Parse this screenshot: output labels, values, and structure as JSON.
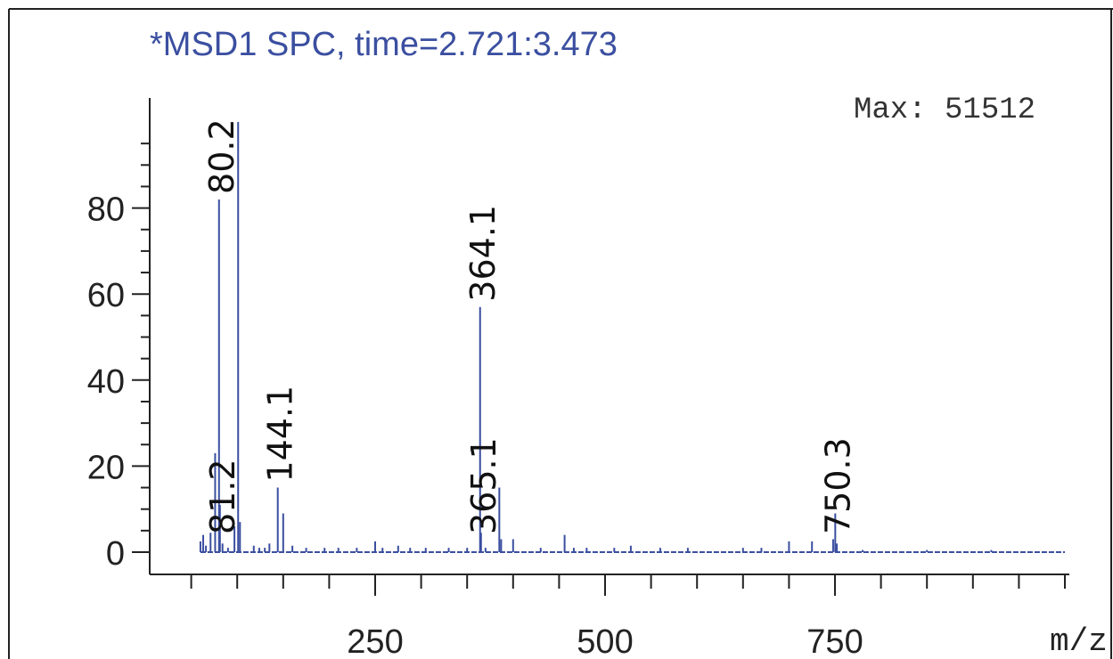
{
  "chart_data": {
    "type": "bar",
    "title": "*MSD1 SPC, time=2.721:3.473",
    "max_label": "Max: 51512",
    "xlabel": "m/z",
    "ylabel": "",
    "xlim": [
      50,
      1000
    ],
    "ylim": [
      0,
      100
    ],
    "x_ticks": {
      "major": [
        250,
        500,
        750
      ],
      "minor_step": 50,
      "labels": [
        "250",
        "500",
        "750"
      ]
    },
    "y_ticks": {
      "major": [
        0,
        20,
        40,
        60,
        80
      ],
      "minor_step": 5,
      "labels": [
        "0",
        "20",
        "40",
        "60",
        "80"
      ]
    },
    "peaks": [
      {
        "mz": 60,
        "intensity": 2.5
      },
      {
        "mz": 63,
        "intensity": 4
      },
      {
        "mz": 66,
        "intensity": 1.5
      },
      {
        "mz": 71,
        "intensity": 4.5
      },
      {
        "mz": 76,
        "intensity": 23
      },
      {
        "mz": 80.2,
        "intensity": 82,
        "label": "80.2"
      },
      {
        "mz": 81.2,
        "intensity": 11,
        "label": "81.2"
      },
      {
        "mz": 84,
        "intensity": 2
      },
      {
        "mz": 90,
        "intensity": 1
      },
      {
        "mz": 97,
        "intensity": 6
      },
      {
        "mz": 101,
        "intensity": 100
      },
      {
        "mz": 103,
        "intensity": 7
      },
      {
        "mz": 118,
        "intensity": 1.5
      },
      {
        "mz": 124,
        "intensity": 1
      },
      {
        "mz": 130,
        "intensity": 1
      },
      {
        "mz": 135,
        "intensity": 2
      },
      {
        "mz": 144.1,
        "intensity": 15,
        "label": "144.1"
      },
      {
        "mz": 150,
        "intensity": 9
      },
      {
        "mz": 160,
        "intensity": 1.5
      },
      {
        "mz": 175,
        "intensity": 1
      },
      {
        "mz": 195,
        "intensity": 1
      },
      {
        "mz": 210,
        "intensity": 1
      },
      {
        "mz": 230,
        "intensity": 1
      },
      {
        "mz": 250,
        "intensity": 2.5
      },
      {
        "mz": 258,
        "intensity": 1
      },
      {
        "mz": 275,
        "intensity": 1.5
      },
      {
        "mz": 288,
        "intensity": 1
      },
      {
        "mz": 305,
        "intensity": 1
      },
      {
        "mz": 330,
        "intensity": 1
      },
      {
        "mz": 350,
        "intensity": 1
      },
      {
        "mz": 364.1,
        "intensity": 57,
        "label": "364.1"
      },
      {
        "mz": 365.1,
        "intensity": 4.5,
        "label": "365.1"
      },
      {
        "mz": 370,
        "intensity": 1
      },
      {
        "mz": 385,
        "intensity": 15
      },
      {
        "mz": 387,
        "intensity": 3
      },
      {
        "mz": 400,
        "intensity": 3
      },
      {
        "mz": 430,
        "intensity": 1
      },
      {
        "mz": 456,
        "intensity": 4
      },
      {
        "mz": 466,
        "intensity": 1
      },
      {
        "mz": 480,
        "intensity": 1
      },
      {
        "mz": 510,
        "intensity": 1
      },
      {
        "mz": 528,
        "intensity": 1.5
      },
      {
        "mz": 560,
        "intensity": 1
      },
      {
        "mz": 590,
        "intensity": 1
      },
      {
        "mz": 650,
        "intensity": 1
      },
      {
        "mz": 670,
        "intensity": 1
      },
      {
        "mz": 700,
        "intensity": 2.5
      },
      {
        "mz": 725,
        "intensity": 2.5
      },
      {
        "mz": 748,
        "intensity": 3
      },
      {
        "mz": 750.3,
        "intensity": 9,
        "label": "750.3"
      },
      {
        "mz": 752,
        "intensity": 2
      },
      {
        "mz": 780,
        "intensity": 0.5
      },
      {
        "mz": 850,
        "intensity": 0.5
      },
      {
        "mz": 920,
        "intensity": 0.5
      }
    ],
    "baseline_range": [
      60,
      1000
    ],
    "grid": false,
    "colors": {
      "peaks": "#3b4fa0",
      "axes": "#222222",
      "title": "#3b4fa0"
    }
  }
}
